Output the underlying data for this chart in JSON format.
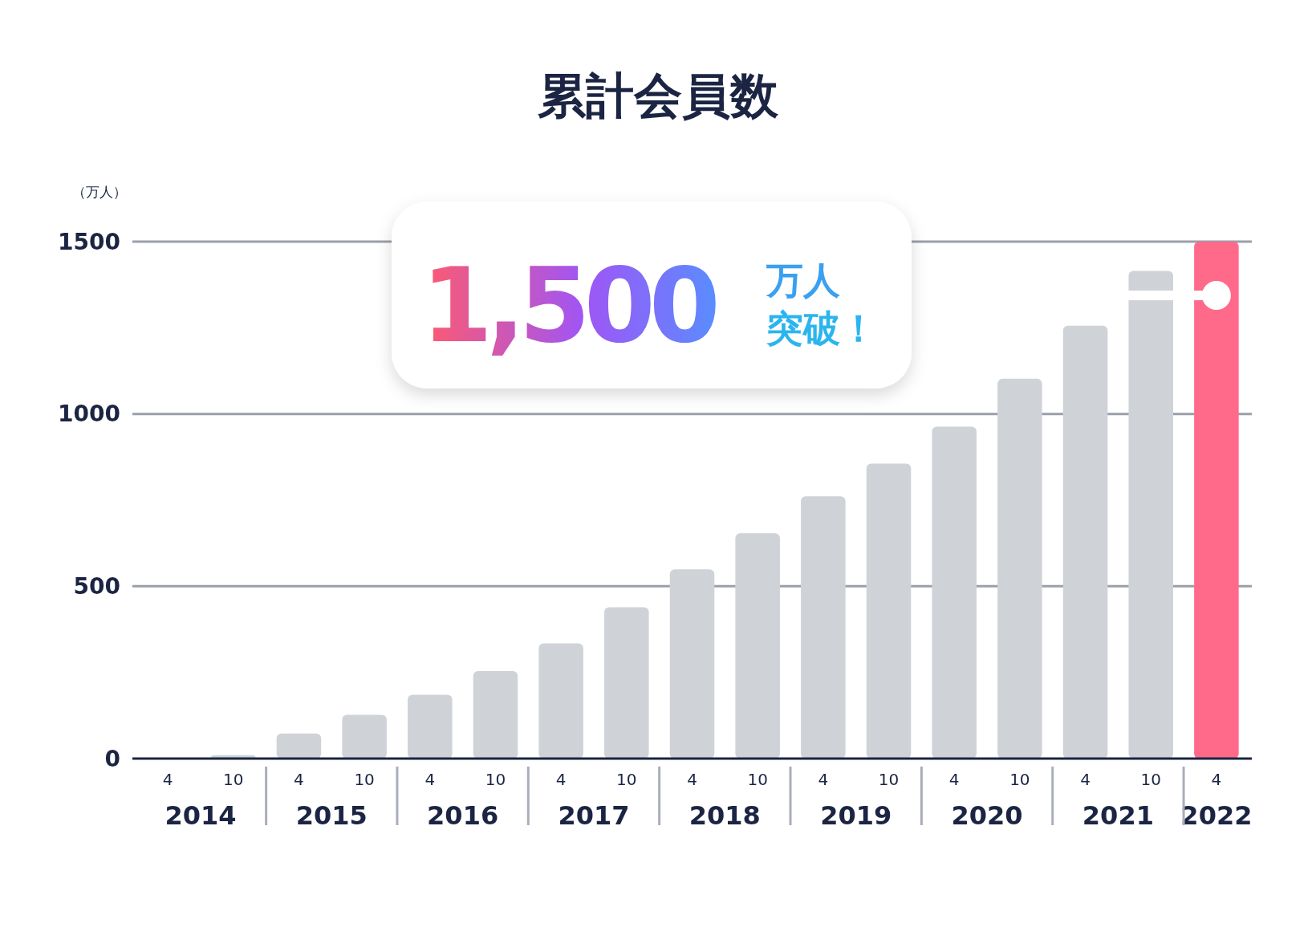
{
  "chart_data": {
    "type": "bar",
    "title": "累計会員数",
    "ylabel": "（万人）",
    "categories": [
      "4",
      "10",
      "4",
      "10",
      "4",
      "10",
      "4",
      "10",
      "4",
      "10",
      "4",
      "10",
      "4",
      "10",
      "4",
      "10",
      "4"
    ],
    "values": [
      0,
      10,
      73,
      127,
      185,
      254,
      334,
      439,
      549,
      654,
      761,
      856,
      963,
      1102,
      1256,
      1415,
      1500
    ],
    "colors": [
      "#cfd3d8",
      "#cfd3d8",
      "#cfd3d8",
      "#cfd3d8",
      "#cfd3d8",
      "#cfd3d8",
      "#cfd3d8",
      "#cfd3d8",
      "#cfd3d8",
      "#cfd3d8",
      "#cfd3d8",
      "#cfd3d8",
      "#cfd3d8",
      "#cfd3d8",
      "#cfd3d8",
      "#cfd3d8",
      "#ff6a8a"
    ],
    "ylim": [
      0,
      1500
    ],
    "yticks": [
      0,
      500,
      1000,
      1500
    ],
    "grid": "y",
    "annotations": [
      "1,500",
      "万人",
      "突破！",
      "2014",
      "2015",
      "2016",
      "2017",
      "2018",
      "2019",
      "2020",
      "2021",
      "2022"
    ]
  }
}
